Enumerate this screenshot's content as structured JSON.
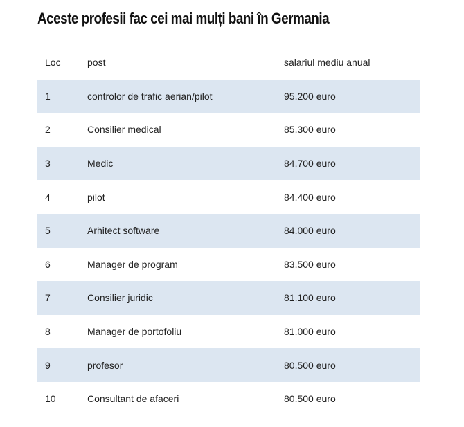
{
  "title": "Aceste profesii fac cei mai mulți bani în Germania",
  "table": {
    "headers": [
      "Loc",
      "post",
      "salariul mediu anual"
    ],
    "rows": [
      [
        "1",
        "controlor de trafic aerian/pilot",
        "95.200 euro"
      ],
      [
        "2",
        "Consilier medical",
        "85.300 euro"
      ],
      [
        "3",
        "Medic",
        "84.700 euro"
      ],
      [
        "4",
        "pilot",
        "84.400 euro"
      ],
      [
        "5",
        "Arhitect software",
        "84.000 euro"
      ],
      [
        "6",
        "Manager de program",
        "83.500 euro"
      ],
      [
        "7",
        "Consilier juridic",
        "81.100 euro"
      ],
      [
        "8",
        "Manager de portofoliu",
        "81.000 euro"
      ],
      [
        "9",
        "profesor",
        "80.500 euro"
      ],
      [
        "10",
        "Consultant de afaceri",
        "80.500 euro"
      ]
    ]
  },
  "colors": {
    "row_shade": "#dce6f1",
    "background": "#ffffff",
    "text": "#222222"
  }
}
